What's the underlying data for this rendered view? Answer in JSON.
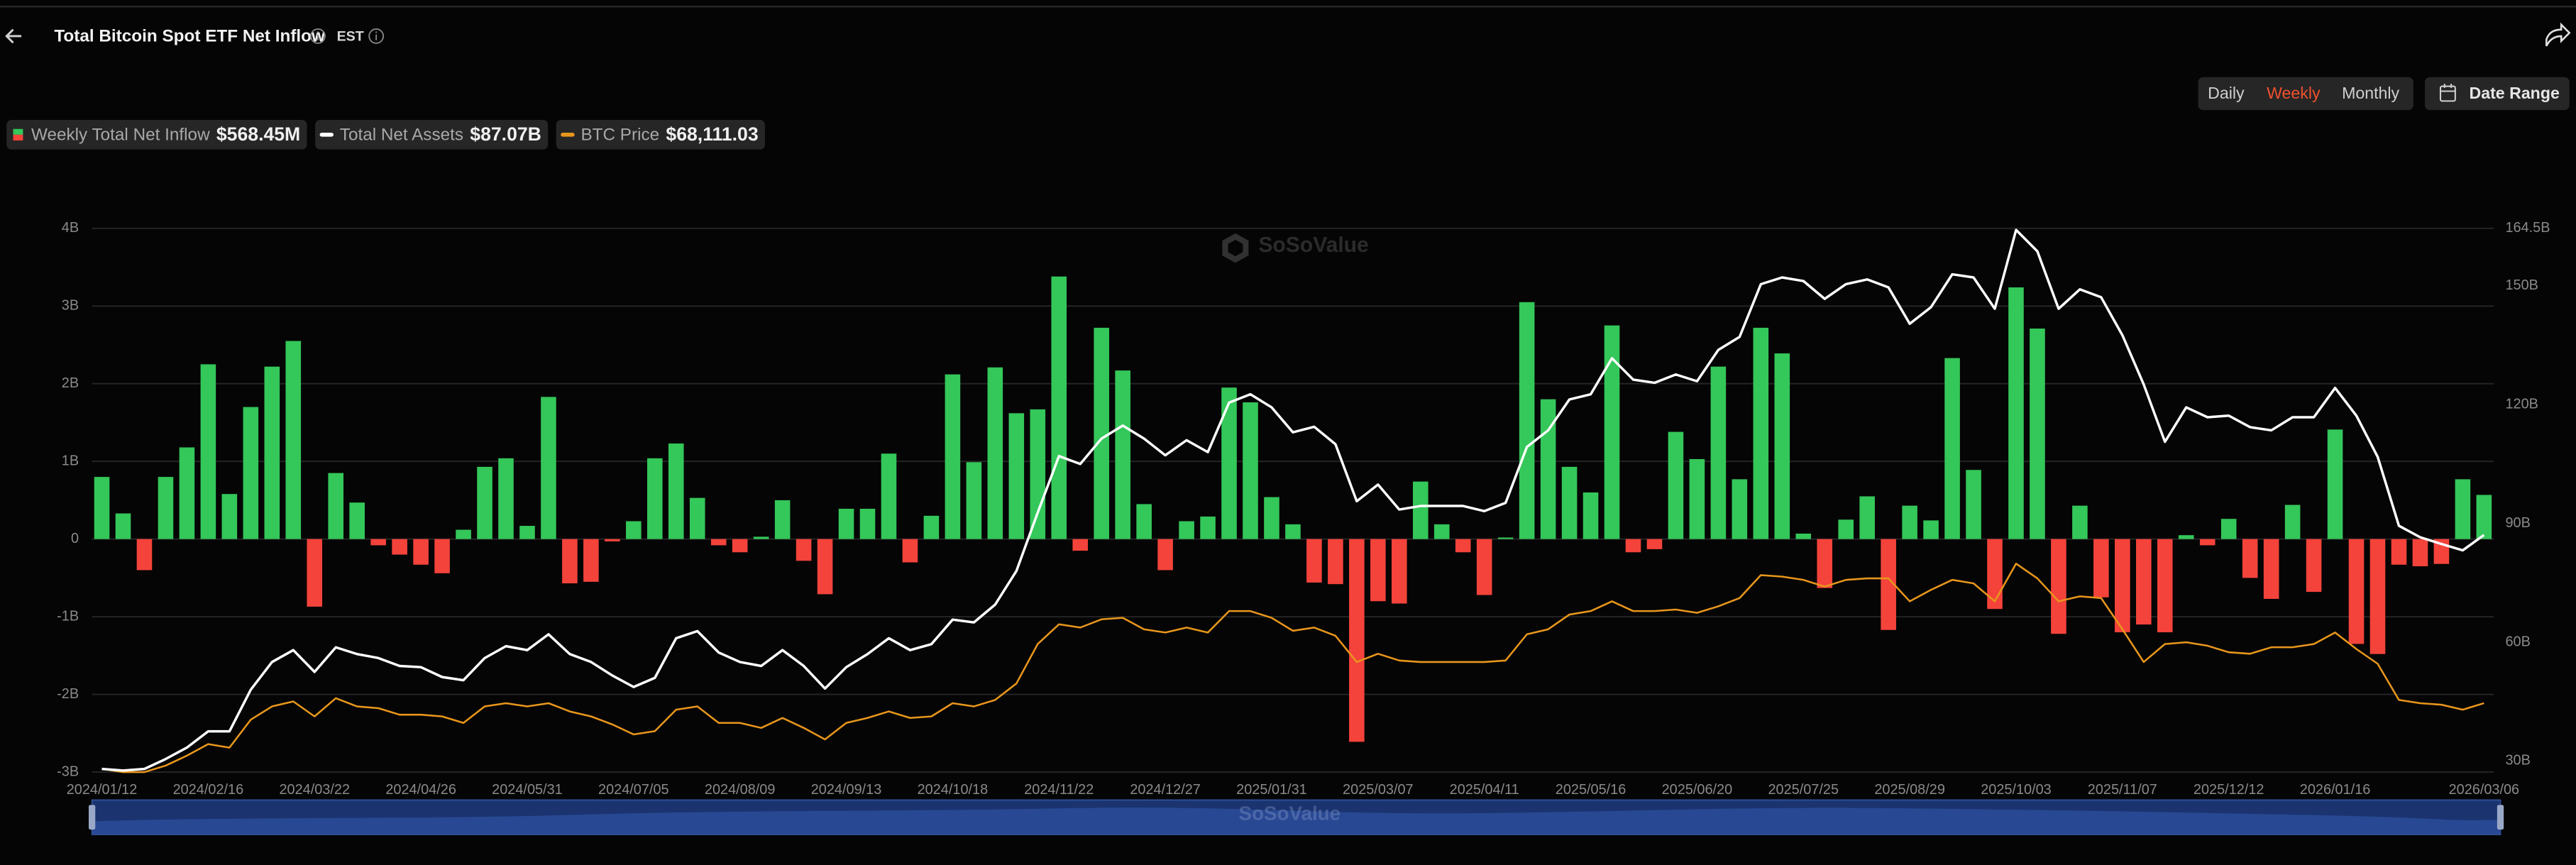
{
  "header": {
    "title": "Total Bitcoin Spot ETF Net Inflow",
    "timezone": "EST",
    "periods": [
      "Daily",
      "Weekly",
      "Monthly"
    ],
    "active_period": 1,
    "active_color": "#f0502d",
    "date_range": "Date Range",
    "watermark": "SoSoValue"
  },
  "chart_data": {
    "type": "combo",
    "categories": [
      "2024/01/12",
      null,
      null,
      null,
      null,
      "2024/02/16",
      null,
      null,
      null,
      null,
      "2024/03/22",
      null,
      null,
      null,
      null,
      "2024/04/26",
      null,
      null,
      null,
      null,
      "2024/05/31",
      null,
      null,
      null,
      null,
      "2024/07/05",
      null,
      null,
      null,
      null,
      "2024/08/09",
      null,
      null,
      null,
      null,
      "2024/09/13",
      null,
      null,
      null,
      null,
      "2024/10/18",
      null,
      null,
      null,
      null,
      "2024/11/22",
      null,
      null,
      null,
      null,
      "2024/12/27",
      null,
      null,
      null,
      null,
      "2025/01/31",
      null,
      null,
      null,
      null,
      "2025/03/07",
      null,
      null,
      null,
      null,
      "2025/04/11",
      null,
      null,
      null,
      null,
      "2025/05/16",
      null,
      null,
      null,
      null,
      "2025/06/20",
      null,
      null,
      null,
      null,
      "2025/07/25",
      null,
      null,
      null,
      null,
      "2025/08/29",
      null,
      null,
      null,
      null,
      "2025/10/03",
      null,
      null,
      null,
      null,
      "2025/11/07",
      null,
      null,
      null,
      null,
      "2025/12/12",
      null,
      null,
      null,
      null,
      "2026/01/16",
      null,
      null,
      null,
      null,
      null,
      null,
      "2026/03/06"
    ],
    "series": [
      {
        "name": "Weekly Total Net Inflow",
        "current_label": "$568.45M",
        "type": "bar",
        "color": "#34c759",
        "negative_color": "#f4433b",
        "values": [
          0.8,
          0.33,
          -0.4,
          0.8,
          1.18,
          2.25,
          0.58,
          1.7,
          2.22,
          2.55,
          -0.87,
          0.85,
          0.47,
          -0.08,
          -0.2,
          -0.33,
          -0.44,
          0.12,
          0.93,
          1.04,
          0.17,
          1.83,
          -0.57,
          -0.55,
          -0.03,
          0.23,
          1.04,
          1.23,
          0.53,
          -0.08,
          -0.17,
          0.03,
          0.5,
          -0.28,
          -0.71,
          0.39,
          0.39,
          1.1,
          -0.3,
          0.3,
          2.12,
          0.99,
          2.21,
          1.62,
          1.67,
          3.38,
          -0.15,
          2.72,
          2.17,
          0.45,
          -0.4,
          0.23,
          0.29,
          1.95,
          1.76,
          0.54,
          0.19,
          -0.56,
          -0.58,
          -2.61,
          -0.8,
          -0.83,
          0.74,
          0.19,
          -0.17,
          -0.72,
          0.02,
          3.05,
          1.8,
          0.93,
          0.6,
          2.75,
          -0.17,
          -0.13,
          1.38,
          1.03,
          2.22,
          0.77,
          2.72,
          2.39,
          0.07,
          -0.63,
          0.25,
          0.55,
          -1.17,
          0.43,
          0.24,
          2.33,
          0.89,
          -0.9,
          3.24,
          2.71,
          -1.22,
          0.43,
          -0.75,
          -1.2,
          -1.1,
          -1.2,
          0.05,
          -0.08,
          0.26,
          -0.5,
          -0.77,
          0.44,
          -0.68,
          1.41,
          -1.35,
          -1.48,
          -0.33,
          -0.35,
          -0.32,
          0.77,
          0.56845
        ]
      },
      {
        "name": "Total Net Assets",
        "current_label": "$87.07B",
        "type": "line",
        "axis": "y2",
        "color": "#ffffff",
        "values": [
          28,
          27.6,
          28,
          30.5,
          33.4,
          37.5,
          37.5,
          48,
          55,
          58,
          52.5,
          58.7,
          57,
          56,
          54,
          53.7,
          51.2,
          50.4,
          56,
          59,
          58,
          62,
          57,
          55,
          51.6,
          48.7,
          51,
          61,
          62.8,
          57.4,
          55,
          54,
          58,
          54,
          48.3,
          53.7,
          57,
          61,
          58,
          59.5,
          65.7,
          65,
          69.5,
          78,
          92.7,
          107,
          105,
          111.4,
          114.7,
          111.4,
          107.2,
          111,
          108,
          120.5,
          122.6,
          119.3,
          113,
          114.4,
          110,
          95.6,
          99.8,
          93.5,
          94.4,
          94.4,
          94.4,
          93.1,
          95.2,
          109.3,
          113.5,
          121.3,
          122.6,
          131.7,
          126.3,
          125.5,
          127.6,
          125.9,
          133.8,
          137.1,
          150.4,
          152.1,
          151.2,
          146.7,
          150.4,
          151.6,
          149.6,
          140.4,
          144.6,
          152.9,
          152.1,
          144.2,
          164.1,
          158.7,
          144.2,
          149.1,
          147.1,
          137.5,
          125.1,
          110.6,
          119.3,
          116.8,
          117.2,
          114.3,
          113.5,
          116.8,
          116.8,
          124.2,
          117.2,
          106.8,
          89.4,
          86.5,
          84.8,
          83.2,
          87.07
        ]
      },
      {
        "name": "BTC Price",
        "current_label": "$68,111.03",
        "type": "line",
        "axis": "y3",
        "color": "#e8961c",
        "values": [
          41800,
          40500,
          40500,
          43100,
          47100,
          51700,
          50300,
          61500,
          66800,
          68800,
          62800,
          70100,
          66800,
          66100,
          63500,
          63500,
          62800,
          60200,
          66800,
          68100,
          66800,
          68100,
          64800,
          62800,
          59600,
          55600,
          56900,
          65500,
          66800,
          60200,
          60200,
          58200,
          62200,
          58200,
          53600,
          60200,
          62200,
          64800,
          62200,
          62800,
          68100,
          66800,
          69400,
          76000,
          91800,
          99700,
          98400,
          101700,
          102300,
          97700,
          96400,
          98400,
          96400,
          105000,
          105000,
          102300,
          97100,
          98400,
          95100,
          84600,
          87900,
          85200,
          84600,
          84600,
          84600,
          84600,
          85200,
          95700,
          97700,
          103600,
          105000,
          108900,
          105000,
          105000,
          105600,
          104300,
          106900,
          110200,
          119400,
          118800,
          117500,
          114800,
          117500,
          118100,
          118100,
          108900,
          113500,
          117500,
          116100,
          108900,
          124000,
          118100,
          108900,
          110900,
          110200,
          97700,
          84600,
          91800,
          92500,
          91100,
          88500,
          87900,
          90500,
          90500,
          91800,
          96400,
          89800,
          83900,
          69400,
          68100,
          67500,
          65500,
          68111.03
        ]
      }
    ],
    "ylim": [
      -3,
      4
    ],
    "yticks": [
      {
        "value": 4,
        "label": "4B"
      },
      {
        "value": 3,
        "label": "3B"
      },
      {
        "value": 2,
        "label": "2B"
      },
      {
        "value": 1,
        "label": "1B"
      },
      0,
      {
        "value": -1,
        "label": "-1B"
      },
      {
        "value": -2,
        "label": "-2B"
      },
      {
        "value": -3,
        "label": "-3B"
      }
    ],
    "y2lim": [
      27.2,
      164.5
    ],
    "y2ticks": [
      {
        "value": 164.5,
        "label": "164.5B"
      },
      {
        "value": 150,
        "label": "150B"
      },
      {
        "value": 120,
        "label": "120B"
      },
      {
        "value": 90,
        "label": "90B"
      },
      {
        "value": 60,
        "label": "60B"
      },
      {
        "value": 30,
        "label": "30B"
      }
    ],
    "y3lim": [
      40500,
      258300
    ],
    "grid": true
  }
}
